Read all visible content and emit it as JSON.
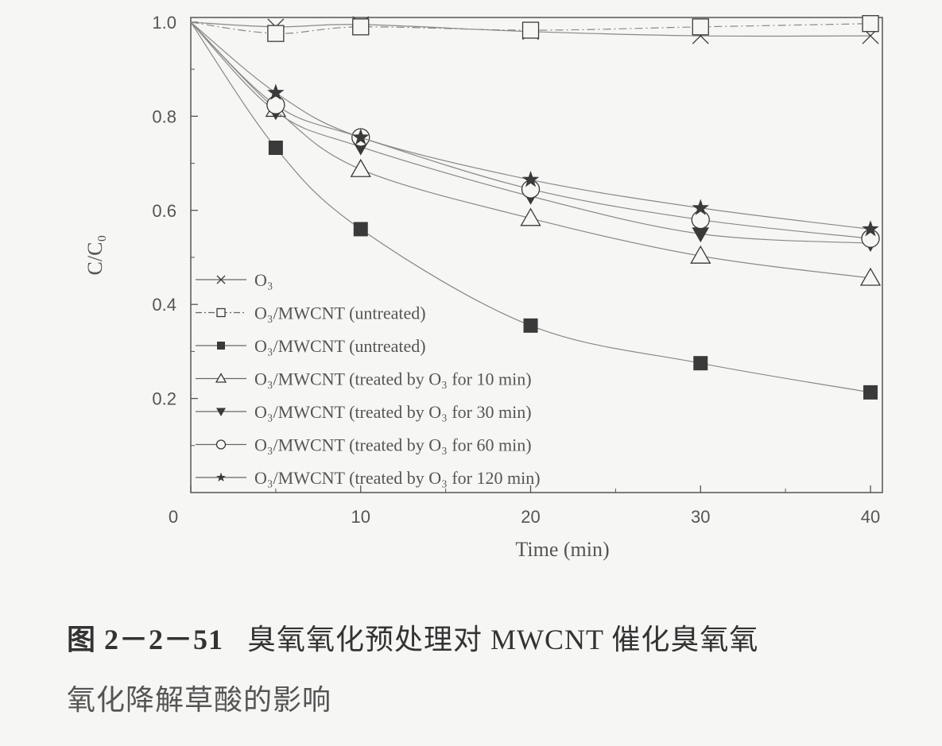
{
  "chart_data": {
    "type": "line",
    "xlabel": "Time (min)",
    "ylabel": "C/C₀",
    "xlim": [
      0,
      40.7
    ],
    "ylim": [
      0,
      1.01
    ],
    "xticks": [
      0,
      10,
      20,
      30,
      40
    ],
    "xtick_labels": [
      "0",
      "10",
      "20",
      "30",
      "40"
    ],
    "yticks": [
      0.2,
      0.4,
      0.6,
      0.8,
      1.0
    ],
    "ytick_labels": [
      "0.2",
      "0.4",
      "0.6",
      "0.8",
      "1.0"
    ],
    "grid": false,
    "legend_position": "bottom-left",
    "x": [
      0,
      5,
      10,
      20,
      30,
      40
    ],
    "series": [
      {
        "name": "O₃",
        "marker": "cross",
        "dash": "solid",
        "values": [
          1.0,
          0.99,
          0.995,
          0.98,
          0.971,
          0.971
        ]
      },
      {
        "name": "O₃/MWCNT (untreated)",
        "marker": "square-open",
        "dash": "dashdot",
        "values": [
          1.0,
          0.976,
          0.99,
          0.983,
          0.99,
          0.997
        ]
      },
      {
        "name": "O₃/MWCNT (untreated)",
        "marker": "square-filled",
        "dash": "solid",
        "values": [
          1.0,
          0.733,
          0.56,
          0.355,
          0.275,
          0.213
        ]
      },
      {
        "name": "O₃/MWCNT (treated by O₃ for 10 min)",
        "marker": "triangle-open",
        "dash": "solid",
        "values": [
          1.0,
          0.815,
          0.687,
          0.583,
          0.503,
          0.456
        ]
      },
      {
        "name": "O₃/MWCNT (treated by O₃ for 30 min)",
        "marker": "triangle-down-filled",
        "dash": "solid",
        "values": [
          1.0,
          0.81,
          0.735,
          0.63,
          0.55,
          0.53
        ]
      },
      {
        "name": "O₃/MWCNT (treated by O₃ for 60 min)",
        "marker": "circle-open",
        "dash": "solid",
        "values": [
          1.0,
          0.824,
          0.755,
          0.645,
          0.58,
          0.54
        ]
      },
      {
        "name": "O₃/MWCNT (treated by O₃ for 120 min)",
        "marker": "star-filled",
        "dash": "solid",
        "values": [
          1.0,
          0.85,
          0.755,
          0.665,
          0.605,
          0.56
        ]
      }
    ],
    "colors": {
      "line": "#888888",
      "marker": "#3a3a3a",
      "axis": "#555555"
    }
  },
  "caption": {
    "figure_number": "图 2－2－51",
    "line1": "臭氧氧化预处理对 MWCNT 催化臭氧",
    "line1_end": "氧",
    "line2": "氧化降解草酸的影响"
  }
}
